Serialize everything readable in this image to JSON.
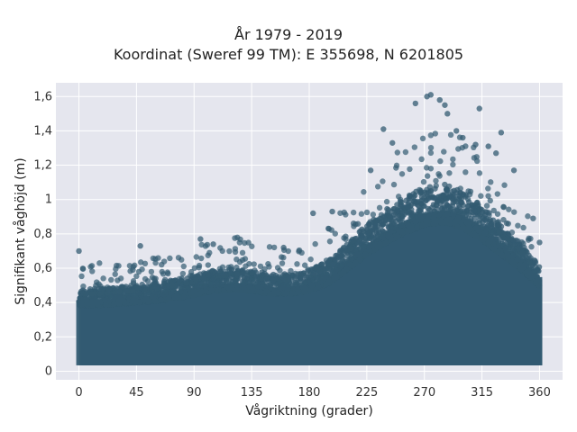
{
  "chart_data": {
    "type": "scatter",
    "title": "År 1979 - 2019",
    "subtitle": "Koordinat (Sweref 99 TM): E 355698, N 6201805",
    "xlabel": "Vågriktning (grader)",
    "ylabel": "Signifikant våghöjd (m)",
    "xlim": [
      -18,
      378
    ],
    "ylim": [
      -0.05,
      1.68
    ],
    "x_ticks": [
      0,
      45,
      90,
      135,
      180,
      225,
      270,
      315,
      360
    ],
    "y_ticks": [
      0,
      0.2,
      0.4,
      0.6,
      0.8,
      1,
      1.2,
      1.4,
      1.6
    ],
    "y_tick_labels": [
      "0",
      "0,2",
      "0,4",
      "0,6",
      "0,8",
      "1",
      "1,2",
      "1,4",
      "1,6"
    ],
    "grid": true,
    "marker_color": "#335b72",
    "background_color": "#e5e6ee",
    "envelope": {
      "direction": [
        0,
        15,
        30,
        45,
        60,
        75,
        90,
        105,
        120,
        135,
        150,
        165,
        180,
        195,
        210,
        225,
        240,
        255,
        270,
        285,
        300,
        315,
        330,
        345,
        360
      ],
      "dense_max_height": [
        0.45,
        0.45,
        0.46,
        0.47,
        0.48,
        0.5,
        0.52,
        0.55,
        0.56,
        0.55,
        0.53,
        0.53,
        0.55,
        0.6,
        0.7,
        0.8,
        0.88,
        0.95,
        1.0,
        1.02,
        0.98,
        0.9,
        0.8,
        0.7,
        0.58
      ],
      "min_height": 0.05
    },
    "outliers": [
      {
        "x": 0,
        "y": 0.7
      },
      {
        "x": 48,
        "y": 0.73
      },
      {
        "x": 95,
        "y": 0.77
      },
      {
        "x": 105,
        "y": 0.74
      },
      {
        "x": 160,
        "y": 0.72
      },
      {
        "x": 183,
        "y": 0.92
      },
      {
        "x": 198,
        "y": 0.93
      },
      {
        "x": 228,
        "y": 1.17
      },
      {
        "x": 238,
        "y": 1.41
      },
      {
        "x": 245,
        "y": 1.33
      },
      {
        "x": 263,
        "y": 1.56
      },
      {
        "x": 272,
        "y": 1.6
      },
      {
        "x": 275,
        "y": 1.61
      },
      {
        "x": 282,
        "y": 1.58
      },
      {
        "x": 286,
        "y": 1.55
      },
      {
        "x": 288,
        "y": 1.5
      },
      {
        "x": 295,
        "y": 1.4
      },
      {
        "x": 300,
        "y": 1.36
      },
      {
        "x": 310,
        "y": 1.32
      },
      {
        "x": 313,
        "y": 1.53
      },
      {
        "x": 320,
        "y": 1.31
      },
      {
        "x": 326,
        "y": 1.27
      },
      {
        "x": 330,
        "y": 1.39
      },
      {
        "x": 340,
        "y": 1.17
      },
      {
        "x": 355,
        "y": 0.89
      },
      {
        "x": 360,
        "y": 0.75
      }
    ]
  }
}
